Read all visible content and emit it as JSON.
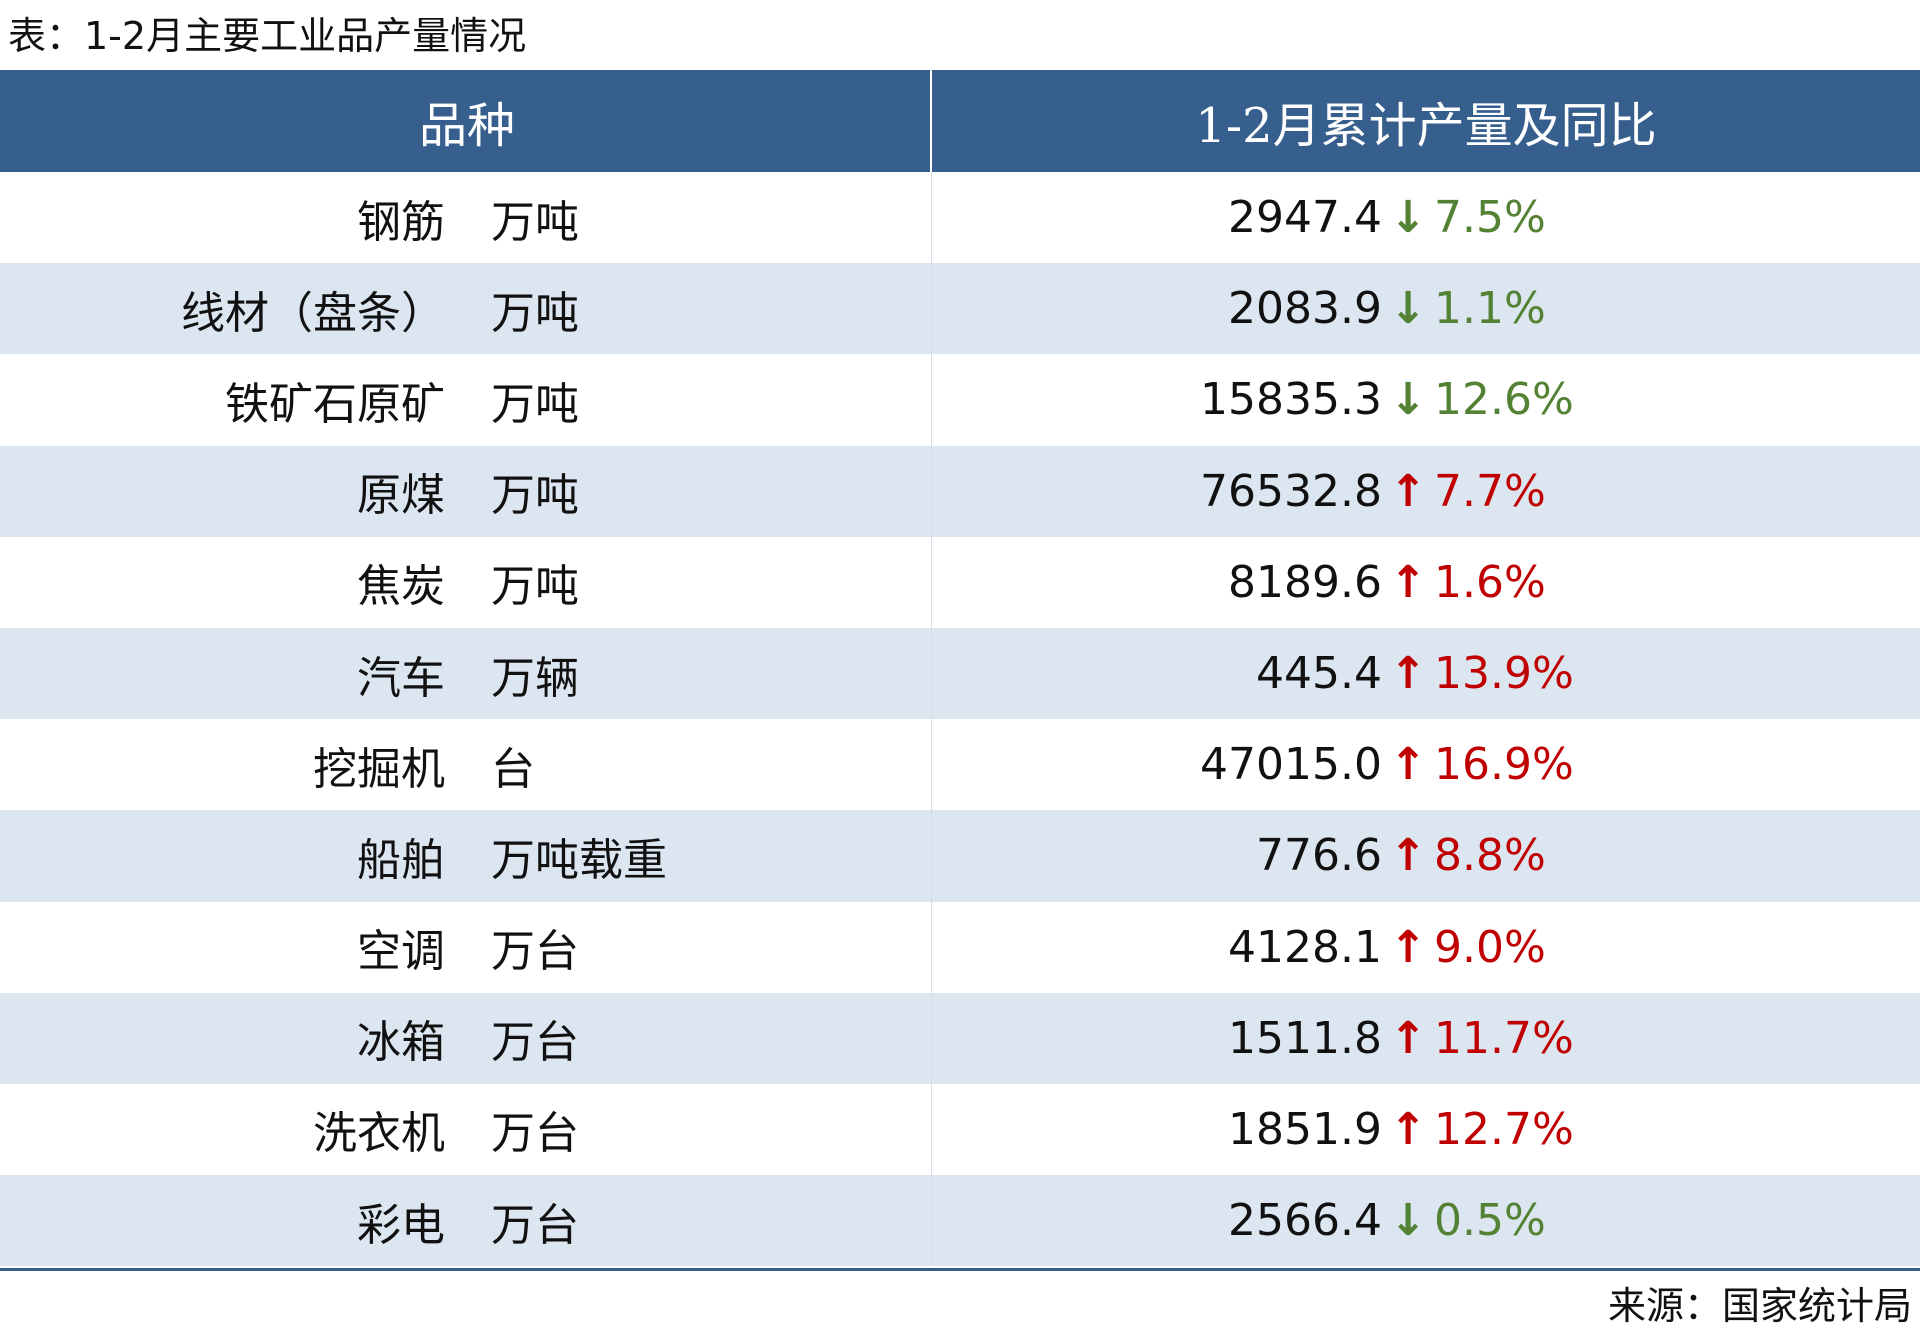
{
  "title": "表：1-2月主要工业品产量情况",
  "header": {
    "col1": "品种",
    "col2": "1-2月累计产量及同比"
  },
  "rows": [
    {
      "name": "钢筋",
      "unit": "万吨",
      "value": "2947.4",
      "arrow": "↓",
      "pct": "7.5%",
      "direction": "down"
    },
    {
      "name": "线材（盘条）",
      "unit": "万吨",
      "value": "2083.9",
      "arrow": "↓",
      "pct": "1.1%",
      "direction": "down"
    },
    {
      "name": "铁矿石原矿",
      "unit": "万吨",
      "value": "15835.3",
      "arrow": "↓",
      "pct": "12.6%",
      "direction": "down"
    },
    {
      "name": "原煤",
      "unit": "万吨",
      "value": "76532.8",
      "arrow": "↑",
      "pct": "7.7%",
      "direction": "up"
    },
    {
      "name": "焦炭",
      "unit": "万吨",
      "value": "8189.6",
      "arrow": "↑",
      "pct": "1.6%",
      "direction": "up"
    },
    {
      "name": "汽车",
      "unit": "万辆",
      "value": "445.4",
      "arrow": "↑",
      "pct": "13.9%",
      "direction": "up"
    },
    {
      "name": "挖掘机",
      "unit": "台",
      "value": "47015.0",
      "arrow": "↑",
      "pct": "16.9%",
      "direction": "up"
    },
    {
      "name": "船舶",
      "unit": "万吨载重",
      "value": "776.6",
      "arrow": "↑",
      "pct": "8.8%",
      "direction": "up"
    },
    {
      "name": "空调",
      "unit": "万台",
      "value": "4128.1",
      "arrow": "↑",
      "pct": "9.0%",
      "direction": "up"
    },
    {
      "name": "冰箱",
      "unit": "万台",
      "value": "1511.8",
      "arrow": "↑",
      "pct": "11.7%",
      "direction": "up"
    },
    {
      "name": "洗衣机",
      "unit": "万台",
      "value": "1851.9",
      "arrow": "↑",
      "pct": "12.7%",
      "direction": "up"
    },
    {
      "name": "彩电",
      "unit": "万台",
      "value": "2566.4",
      "arrow": "↓",
      "pct": "0.5%",
      "direction": "down"
    }
  ],
  "source": "来源：国家统计局",
  "colors": {
    "header_bg": "#365f8d",
    "stripe": "#dce6f1",
    "up": "#c00000",
    "down": "#548235"
  }
}
